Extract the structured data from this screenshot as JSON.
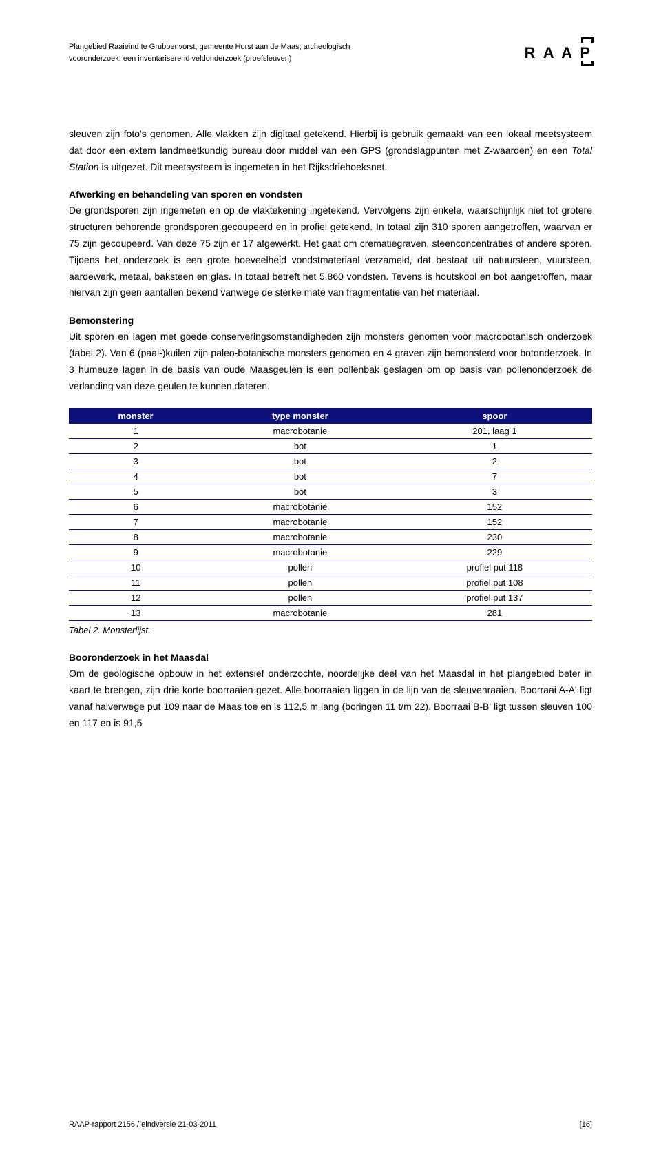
{
  "header": {
    "line1": "Plangebied Raaieind te Grubbenvorst, gemeente Horst aan de Maas; archeologisch",
    "line2": "vooronderzoek: een inventariserend veldonderzoek (proefsleuven)",
    "logo": "R A A P"
  },
  "para1": "sleuven zijn foto's genomen. Alle vlakken zijn digitaal getekend. Hierbij is gebruik gemaakt van een lokaal meetsysteem dat door een extern landmeetkundig bureau door middel van een GPS (grondslagpunten met Z-waarden) en een Total Station is uitgezet. Dit meetsysteem is ingemeten in het Rijksdriehoeksnet.",
  "heading1": "Afwerking en behandeling van sporen en vondsten",
  "para2": "De grondsporen zijn ingemeten en op de vlaktekening ingetekend. Vervolgens zijn enkele, waarschijnlijk niet tot grotere structuren behorende grondsporen gecoupeerd en in profiel getekend. In totaal zijn 310 sporen aangetroffen, waarvan er 75 zijn gecoupeerd. Van deze 75 zijn er 17 afgewerkt. Het gaat om crematiegraven, steenconcentraties of andere sporen. Tijdens het onderzoek is een grote hoeveelheid vondstmateriaal verzameld, dat bestaat uit natuursteen, vuursteen, aardewerk, metaal, baksteen en glas. In totaal betreft het 5.860 vondsten. Tevens is houtskool en bot aangetroffen, maar hiervan zijn geen aantallen bekend vanwege de sterke mate van fragmentatie van het materiaal.",
  "heading2": "Bemonstering",
  "para3": "Uit sporen en lagen met goede conserveringsomstandigheden zijn monsters genomen voor macrobotanisch onderzoek (tabel 2). Van 6 (paal-)kuilen zijn paleo-botanische monsters genomen en 4 graven zijn bemonsterd voor botonderzoek. In 3 humeuze lagen in de basis van oude Maasgeulen is een pollenbak geslagen om op basis van pollenonderzoek de verlanding van deze geulen te kunnen dateren.",
  "table": {
    "header_bg": "#10107a",
    "header_fg": "#ffffff",
    "columns": [
      "monster",
      "type monster",
      "spoor"
    ],
    "rows": [
      [
        "1",
        "macrobotanie",
        "201, laag 1"
      ],
      [
        "2",
        "bot",
        "1"
      ],
      [
        "3",
        "bot",
        "2"
      ],
      [
        "4",
        "bot",
        "7"
      ],
      [
        "5",
        "bot",
        "3"
      ],
      [
        "6",
        "macrobotanie",
        "152"
      ],
      [
        "7",
        "macrobotanie",
        "152"
      ],
      [
        "8",
        "macrobotanie",
        "230"
      ],
      [
        "9",
        "macrobotanie",
        "229"
      ],
      [
        "10",
        "pollen",
        "profiel put 118"
      ],
      [
        "11",
        "pollen",
        "profiel put 108"
      ],
      [
        "12",
        "pollen",
        "profiel put 137"
      ],
      [
        "13",
        "macrobotanie",
        "281"
      ]
    ]
  },
  "table_caption": "Tabel 2. Monsterlijst.",
  "heading3": "Booronderzoek in het Maasdal",
  "para4": "Om de geologische opbouw in het extensief onderzochte, noordelijke deel van het Maasdal in het plangebied beter in kaart te brengen, zijn drie korte boorraaien gezet. Alle boorraaien liggen in de lijn van de sleuvenraaien. Boorraai A-A' ligt vanaf halverwege put 109 naar de Maas toe en is 112,5 m lang (boringen 11 t/m 22). Boorraai B-B' ligt tussen sleuven 100 en 117 en is 91,5",
  "footer": {
    "left": "RAAP-rapport 2156 / eindversie 21-03-2011",
    "right": "[16]"
  }
}
